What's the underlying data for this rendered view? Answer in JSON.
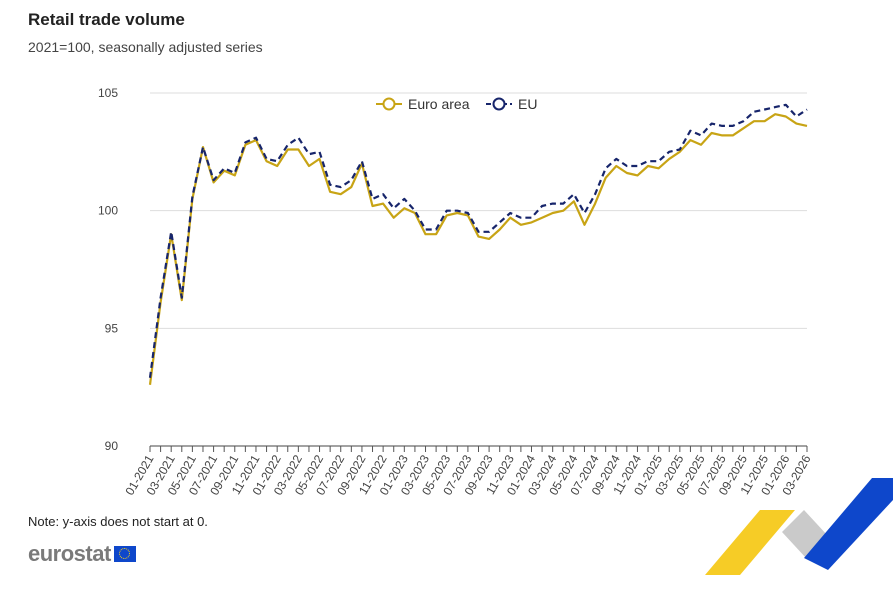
{
  "header": {
    "title": "Retail trade volume",
    "subtitle": "2021=100, seasonally adjusted series"
  },
  "footer": {
    "note": "Note: y-axis does not start at 0.",
    "logo_text": "eurostat"
  },
  "colors": {
    "euro_area": "#c8a415",
    "eu": "#17256b",
    "grid": "#dddddd",
    "corner_yellow": "#f5c300",
    "corner_blue": "#0e47cb",
    "corner_grey": "#bdbdbd"
  },
  "chart_data": {
    "type": "line",
    "title": "Retail trade volume",
    "subtitle": "2021=100, seasonally adjusted series",
    "ylim": [
      90,
      105
    ],
    "yticks": [
      90,
      95,
      100,
      105
    ],
    "grid": true,
    "legend": "top-center",
    "x": [
      "01-2021",
      "02-2021",
      "03-2021",
      "04-2021",
      "05-2021",
      "06-2021",
      "07-2021",
      "08-2021",
      "09-2021",
      "10-2021",
      "11-2021",
      "12-2021",
      "01-2022",
      "02-2022",
      "03-2022",
      "04-2022",
      "05-2022",
      "06-2022",
      "07-2022",
      "08-2022",
      "09-2022",
      "10-2022",
      "11-2022",
      "12-2022",
      "01-2023",
      "02-2023",
      "03-2023",
      "04-2023",
      "05-2023",
      "06-2023",
      "07-2023",
      "08-2023",
      "09-2023",
      "10-2023",
      "11-2023",
      "12-2023",
      "01-2024",
      "02-2024",
      "03-2024",
      "04-2024",
      "05-2024",
      "06-2024",
      "07-2024",
      "08-2024",
      "09-2024",
      "10-2024",
      "11-2024",
      "12-2024",
      "01-2025",
      "02-2025",
      "03-2025",
      "04-2025",
      "05-2025",
      "06-2025",
      "07-2025",
      "08-2025",
      "09-2025",
      "10-2025",
      "11-2025",
      "12-2025",
      "01-2026",
      "02-2026",
      "03-2026"
    ],
    "xtick_labels": [
      "01-2021",
      "03-2021",
      "05-2021",
      "07-2021",
      "09-2021",
      "11-2021",
      "01-2022",
      "03-2022",
      "05-2022",
      "07-2022",
      "09-2022",
      "11-2022",
      "01-2023",
      "03-2023",
      "05-2023",
      "07-2023",
      "09-2023",
      "11-2023",
      "01-2024",
      "03-2024",
      "05-2024",
      "07-2024",
      "09-2024",
      "11-2024",
      "01-2025",
      "03-2025",
      "05-2025",
      "07-2025",
      "09-2025",
      "11-2025",
      "01-2026",
      "03-2026"
    ],
    "series": [
      {
        "name": "Euro area",
        "style": "solid",
        "values": [
          92.6,
          96.1,
          99.0,
          96.2,
          100.5,
          102.7,
          101.2,
          101.7,
          101.5,
          102.8,
          103.0,
          102.1,
          101.9,
          102.6,
          102.6,
          101.9,
          102.2,
          100.8,
          100.7,
          101.0,
          102.0,
          100.2,
          100.3,
          99.7,
          100.1,
          99.9,
          99.0,
          99.0,
          99.8,
          99.9,
          99.8,
          98.9,
          98.8,
          99.2,
          99.7,
          99.4,
          99.5,
          99.7,
          99.9,
          100.0,
          100.4,
          99.4,
          100.3,
          101.4,
          101.9,
          101.6,
          101.5,
          101.9,
          101.8,
          102.2,
          102.5,
          103.0,
          102.8,
          103.3,
          103.2,
          103.2,
          103.5,
          103.8,
          103.8,
          104.1,
          104.0,
          103.7,
          103.6
        ]
      },
      {
        "name": "EU",
        "style": "dashed",
        "values": [
          92.9,
          96.3,
          99.1,
          96.3,
          100.6,
          102.7,
          101.3,
          101.8,
          101.6,
          102.9,
          103.1,
          102.2,
          102.1,
          102.8,
          103.1,
          102.4,
          102.5,
          101.1,
          101.0,
          101.3,
          102.1,
          100.5,
          100.7,
          100.1,
          100.5,
          100.0,
          99.2,
          99.2,
          100.0,
          100.0,
          99.9,
          99.1,
          99.1,
          99.5,
          99.9,
          99.7,
          99.7,
          100.2,
          100.3,
          100.3,
          100.7,
          99.9,
          100.7,
          101.8,
          102.2,
          101.9,
          101.9,
          102.1,
          102.1,
          102.5,
          102.6,
          103.4,
          103.2,
          103.7,
          103.6,
          103.6,
          103.8,
          104.2,
          104.3,
          104.4,
          104.5,
          104.0,
          104.3
        ]
      }
    ]
  }
}
